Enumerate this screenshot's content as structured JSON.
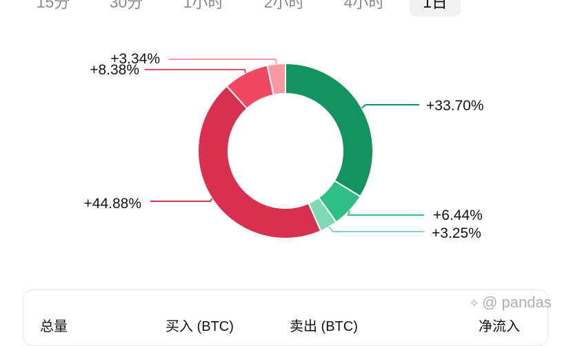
{
  "tabs": [
    {
      "label": "15分",
      "active": false
    },
    {
      "label": "30分",
      "active": false
    },
    {
      "label": "1小时",
      "active": false
    },
    {
      "label": "2小时",
      "active": false
    },
    {
      "label": "4小时",
      "active": false
    },
    {
      "label": "1日",
      "active": true
    }
  ],
  "chart_data": {
    "type": "pie",
    "donut": true,
    "slices": [
      {
        "label": "+33.70%",
        "value": 33.7,
        "color": "#12935f"
      },
      {
        "label": "+6.44%",
        "value": 6.44,
        "color": "#2fbe86"
      },
      {
        "label": "+3.25%",
        "value": 3.25,
        "color": "#7ed9b4"
      },
      {
        "label": "+44.88%",
        "value": 44.88,
        "color": "#d93050"
      },
      {
        "label": "+8.38%",
        "value": 8.38,
        "color": "#f04860"
      },
      {
        "label": "+3.34%",
        "value": 3.34,
        "color": "#f79aa2"
      }
    ]
  },
  "table": {
    "columns": [
      "总量",
      "买入 (BTC)",
      "卖出 (BTC)",
      "净流入"
    ]
  },
  "watermark": "@ pandas"
}
